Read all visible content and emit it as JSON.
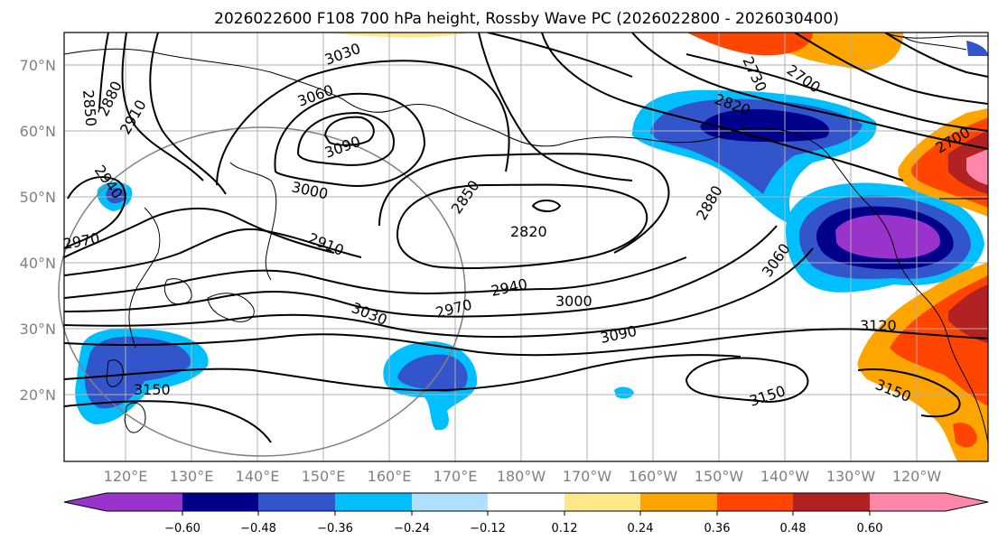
{
  "map": {
    "title": "2026022600 F108 700 hPa height, Rossby Wave PC (2026022800 - 2026030400)",
    "lat_labels": [
      "70°N",
      "60°N",
      "50°N",
      "40°N",
      "30°N",
      "20°N"
    ],
    "lon_labels": [
      "120°E",
      "130°E",
      "140°E",
      "150°E",
      "160°E",
      "170°E",
      "180°W",
      "170°W",
      "160°W",
      "150°W",
      "140°W",
      "130°W",
      "120°W"
    ],
    "contour_labels": [
      "2850",
      "2880",
      "2910",
      "2940",
      "2970",
      "3030",
      "3060",
      "3090",
      "3000",
      "2910",
      "2850",
      "2820",
      "2940",
      "2970",
      "3000",
      "3030",
      "3090",
      "2880",
      "3060",
      "3120",
      "3150",
      "3150",
      "3150",
      "2820",
      "2730",
      "2700",
      "2700"
    ],
    "colorbar": {
      "ticks": [
        "−0.60",
        "−0.48",
        "−0.36",
        "−0.24",
        "−0.12",
        "0.12",
        "0.24",
        "0.36",
        "0.48",
        "0.60"
      ],
      "colors": [
        "#9933cc",
        "#00008b",
        "#3355cc",
        "#00bfff",
        "#b0e0ff",
        "#ffffff",
        "#ffe88a",
        "#ffa500",
        "#ff4500",
        "#b22222",
        "#ff88aa"
      ]
    }
  }
}
